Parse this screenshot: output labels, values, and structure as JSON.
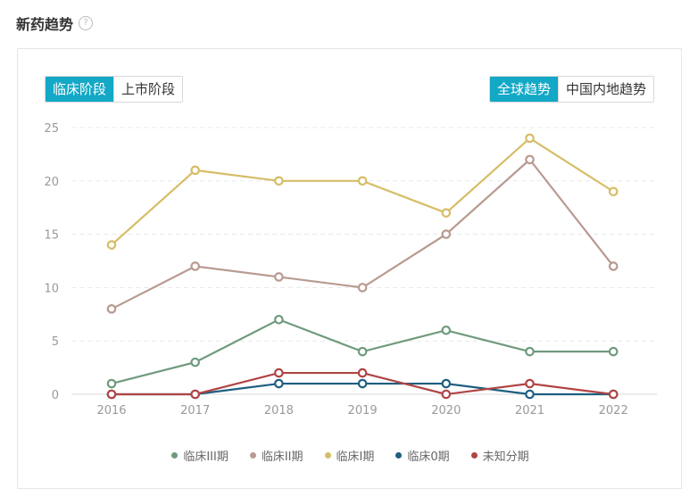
{
  "header": {
    "title": "新药趋势",
    "help_icon": "question-circle-icon"
  },
  "stage_toggle": {
    "options": [
      "临床阶段",
      "上市阶段"
    ],
    "selected": "临床阶段"
  },
  "region_toggle": {
    "options": [
      "全球趋势",
      "中国内地趋势"
    ],
    "selected": "全球趋势"
  },
  "chart_data": {
    "type": "line",
    "x": [
      "2016",
      "2017",
      "2018",
      "2019",
      "2020",
      "2021",
      "2022"
    ],
    "ylim": [
      0,
      25
    ],
    "yticks": [
      0,
      5,
      10,
      15,
      20,
      25
    ],
    "grid": "horizontal dashed",
    "legend_position": "bottom",
    "series": [
      {
        "name": "临床III期",
        "color": "#6f9a7d",
        "values": [
          1,
          3,
          7,
          4,
          6,
          4,
          4
        ]
      },
      {
        "name": "临床II期",
        "color": "#b89a90",
        "values": [
          8,
          12,
          11,
          10,
          15,
          22,
          12
        ]
      },
      {
        "name": "临床I期",
        "color": "#d6bd66",
        "values": [
          14,
          21,
          20,
          20,
          17,
          24,
          19
        ]
      },
      {
        "name": "临床0期",
        "color": "#1d5f80",
        "values": [
          0,
          0,
          1,
          1,
          1,
          0,
          0
        ]
      },
      {
        "name": "未知分期",
        "color": "#b04444",
        "values": [
          0,
          0,
          2,
          2,
          0,
          1,
          0
        ]
      }
    ]
  }
}
